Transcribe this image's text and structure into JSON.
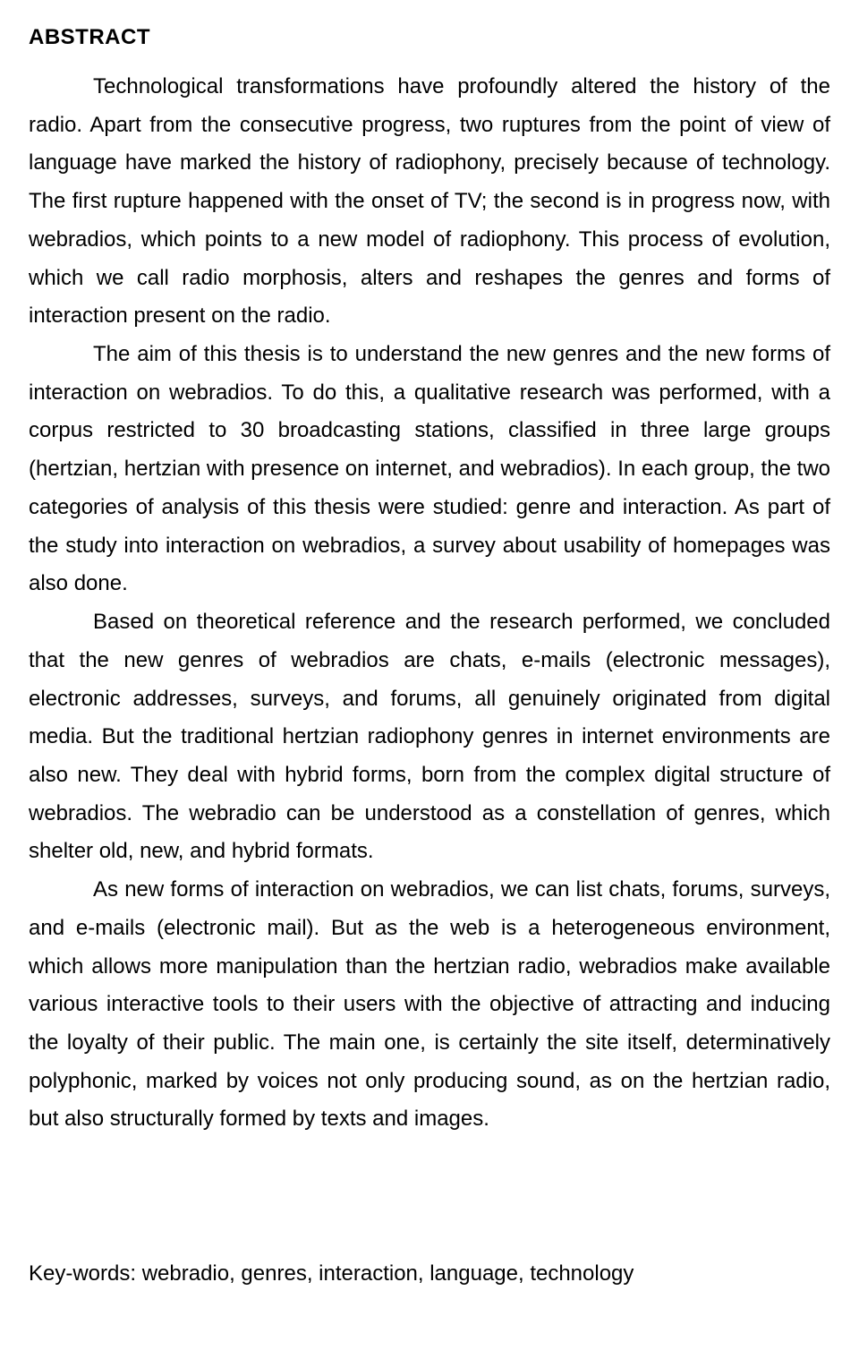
{
  "heading": "ABSTRACT",
  "paragraphs": [
    "Technological transformations have profoundly altered the history of the radio. Apart from the consecutive progress, two ruptures from the point of view of language have marked the history of radiophony, precisely because of technology. The first rupture happened with the onset of TV; the second is in progress now, with webradios, which points to a new model of radiophony. This process of evolution, which we call radio morphosis, alters and reshapes the genres and forms of interaction present on the radio.",
    "The aim of this thesis is to understand the new genres and the new forms of interaction on webradios. To do this, a qualitative research was performed, with a corpus restricted to 30 broadcasting stations, classified in three large groups (hertzian, hertzian with presence on internet, and webradios). In each group, the two categories of analysis of this thesis were studied: genre and interaction. As part of the study into interaction on webradios, a survey about usability of homepages was also done.",
    "Based on theoretical reference and the research performed, we concluded that the new genres of webradios are chats, e-mails (electronic messages), electronic addresses, surveys, and forums, all genuinely originated from digital media. But the traditional hertzian radiophony genres in internet environments are also new. They deal with hybrid forms, born from the complex digital structure of webradios. The webradio can be understood as a constellation of genres, which shelter old, new, and hybrid formats.",
    "As new forms of interaction on webradios, we can list chats, forums, surveys, and e-mails (electronic mail). But as the web is a heterogeneous environment, which allows more manipulation than the hertzian radio, webradios make available various interactive tools to their users with the objective of attracting and inducing the loyalty of their public. The main one, is certainly the site itself, determinatively polyphonic, marked by voices not only producing sound, as on the hertzian radio, but also structurally formed by texts and images."
  ],
  "keywords": "Key-words: webradio, genres, interaction, language, technology"
}
